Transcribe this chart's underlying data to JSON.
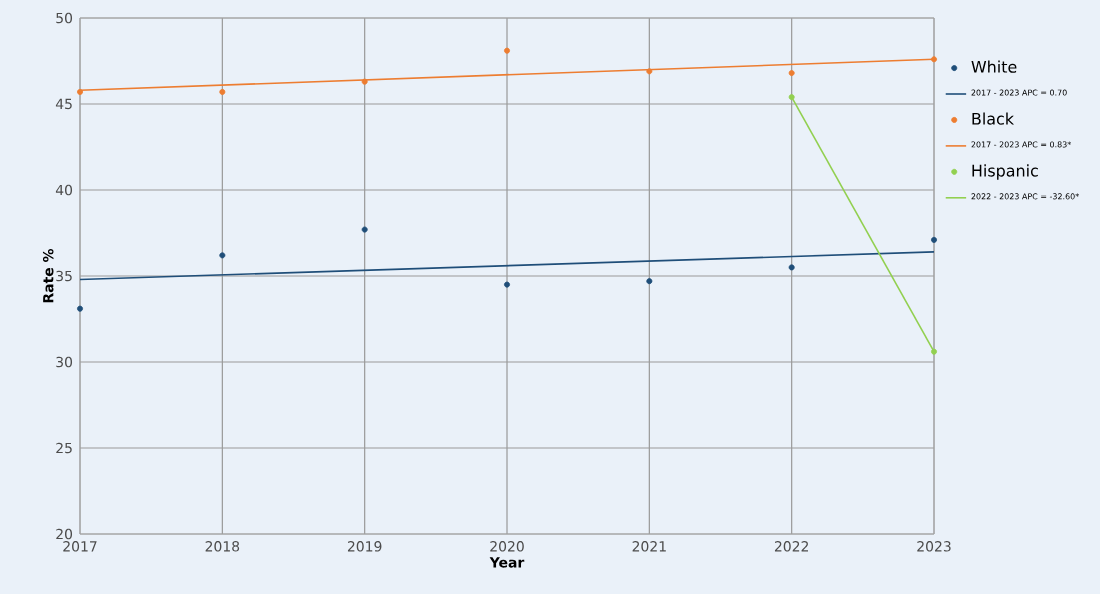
{
  "chart_data": {
    "type": "scatter",
    "xlabel": "Year",
    "ylabel": "Rate %",
    "x": [
      2017,
      2018,
      2019,
      2020,
      2021,
      2022,
      2023
    ],
    "xlim": [
      2017,
      2023
    ],
    "xticks": [
      2017,
      2018,
      2019,
      2020,
      2021,
      2022,
      2023
    ],
    "ylim": [
      20,
      50
    ],
    "yticks": [
      20,
      25,
      30,
      35,
      40,
      45,
      50
    ],
    "grid": true,
    "legend": "right",
    "series": [
      {
        "name": "White",
        "color": "#1f4e79",
        "marker": "circle",
        "values": [
          33.1,
          36.2,
          37.7,
          34.5,
          34.7,
          35.5,
          37.1
        ]
      },
      {
        "name": "2017 - 2023 APC = 0.70",
        "type": "line",
        "marker": "none",
        "color": "#1f4e79",
        "x": [
          2017,
          2023
        ],
        "values": [
          34.8,
          36.4
        ]
      },
      {
        "name": "Black",
        "color": "#ed7d31",
        "marker": "circle",
        "values": [
          45.7,
          45.7,
          46.3,
          48.1,
          46.9,
          46.8,
          47.6
        ]
      },
      {
        "name": "2017 - 2023 APC = 0.83*",
        "type": "line",
        "marker": "none",
        "color": "#ed7d31",
        "x": [
          2017,
          2023
        ],
        "values": [
          45.8,
          47.6
        ]
      },
      {
        "name": "Hispanic",
        "color": "#92d050",
        "marker": "circle",
        "x": [
          2022,
          2023
        ],
        "values": [
          45.4,
          30.6
        ]
      },
      {
        "name": "2022 - 2023 APC = -32.60*",
        "type": "line",
        "marker": "none",
        "color": "#92d050",
        "x": [
          2022,
          2023
        ],
        "values": [
          45.4,
          30.6
        ]
      }
    ]
  }
}
